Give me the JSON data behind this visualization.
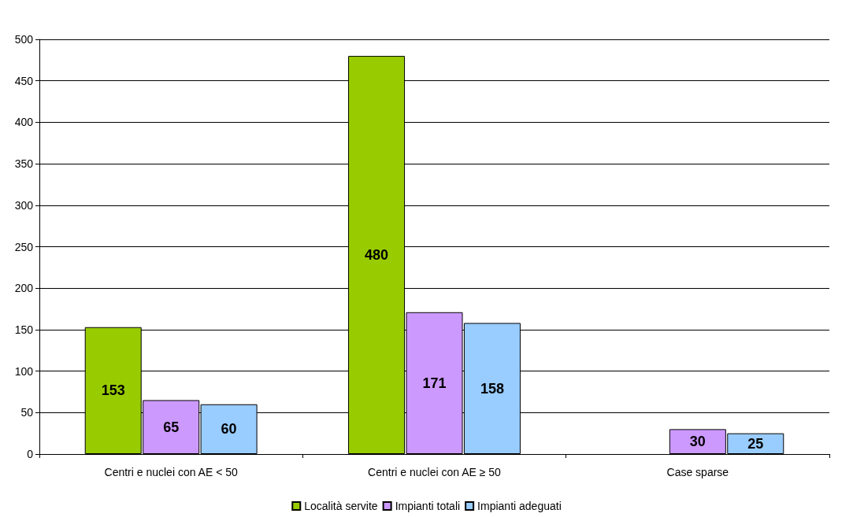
{
  "chart_data": {
    "type": "bar",
    "categories": [
      "Centri e nuclei con AE < 50",
      "Centri e nuclei con AE ≥ 50",
      "Case sparse"
    ],
    "series": [
      {
        "name": "Località servite",
        "color": "#99cc00",
        "values": [
          153,
          480,
          null
        ]
      },
      {
        "name": "Impianti totali",
        "color": "#cc99ff",
        "values": [
          65,
          171,
          30
        ]
      },
      {
        "name": "Impianti adeguati",
        "color": "#99ccff",
        "values": [
          60,
          158,
          25
        ]
      }
    ],
    "ylim": [
      0,
      500
    ],
    "yticks": [
      0,
      50,
      100,
      150,
      200,
      250,
      300,
      350,
      400,
      450,
      500
    ],
    "grid": "y",
    "legend": "bottom",
    "data_labels": true
  }
}
